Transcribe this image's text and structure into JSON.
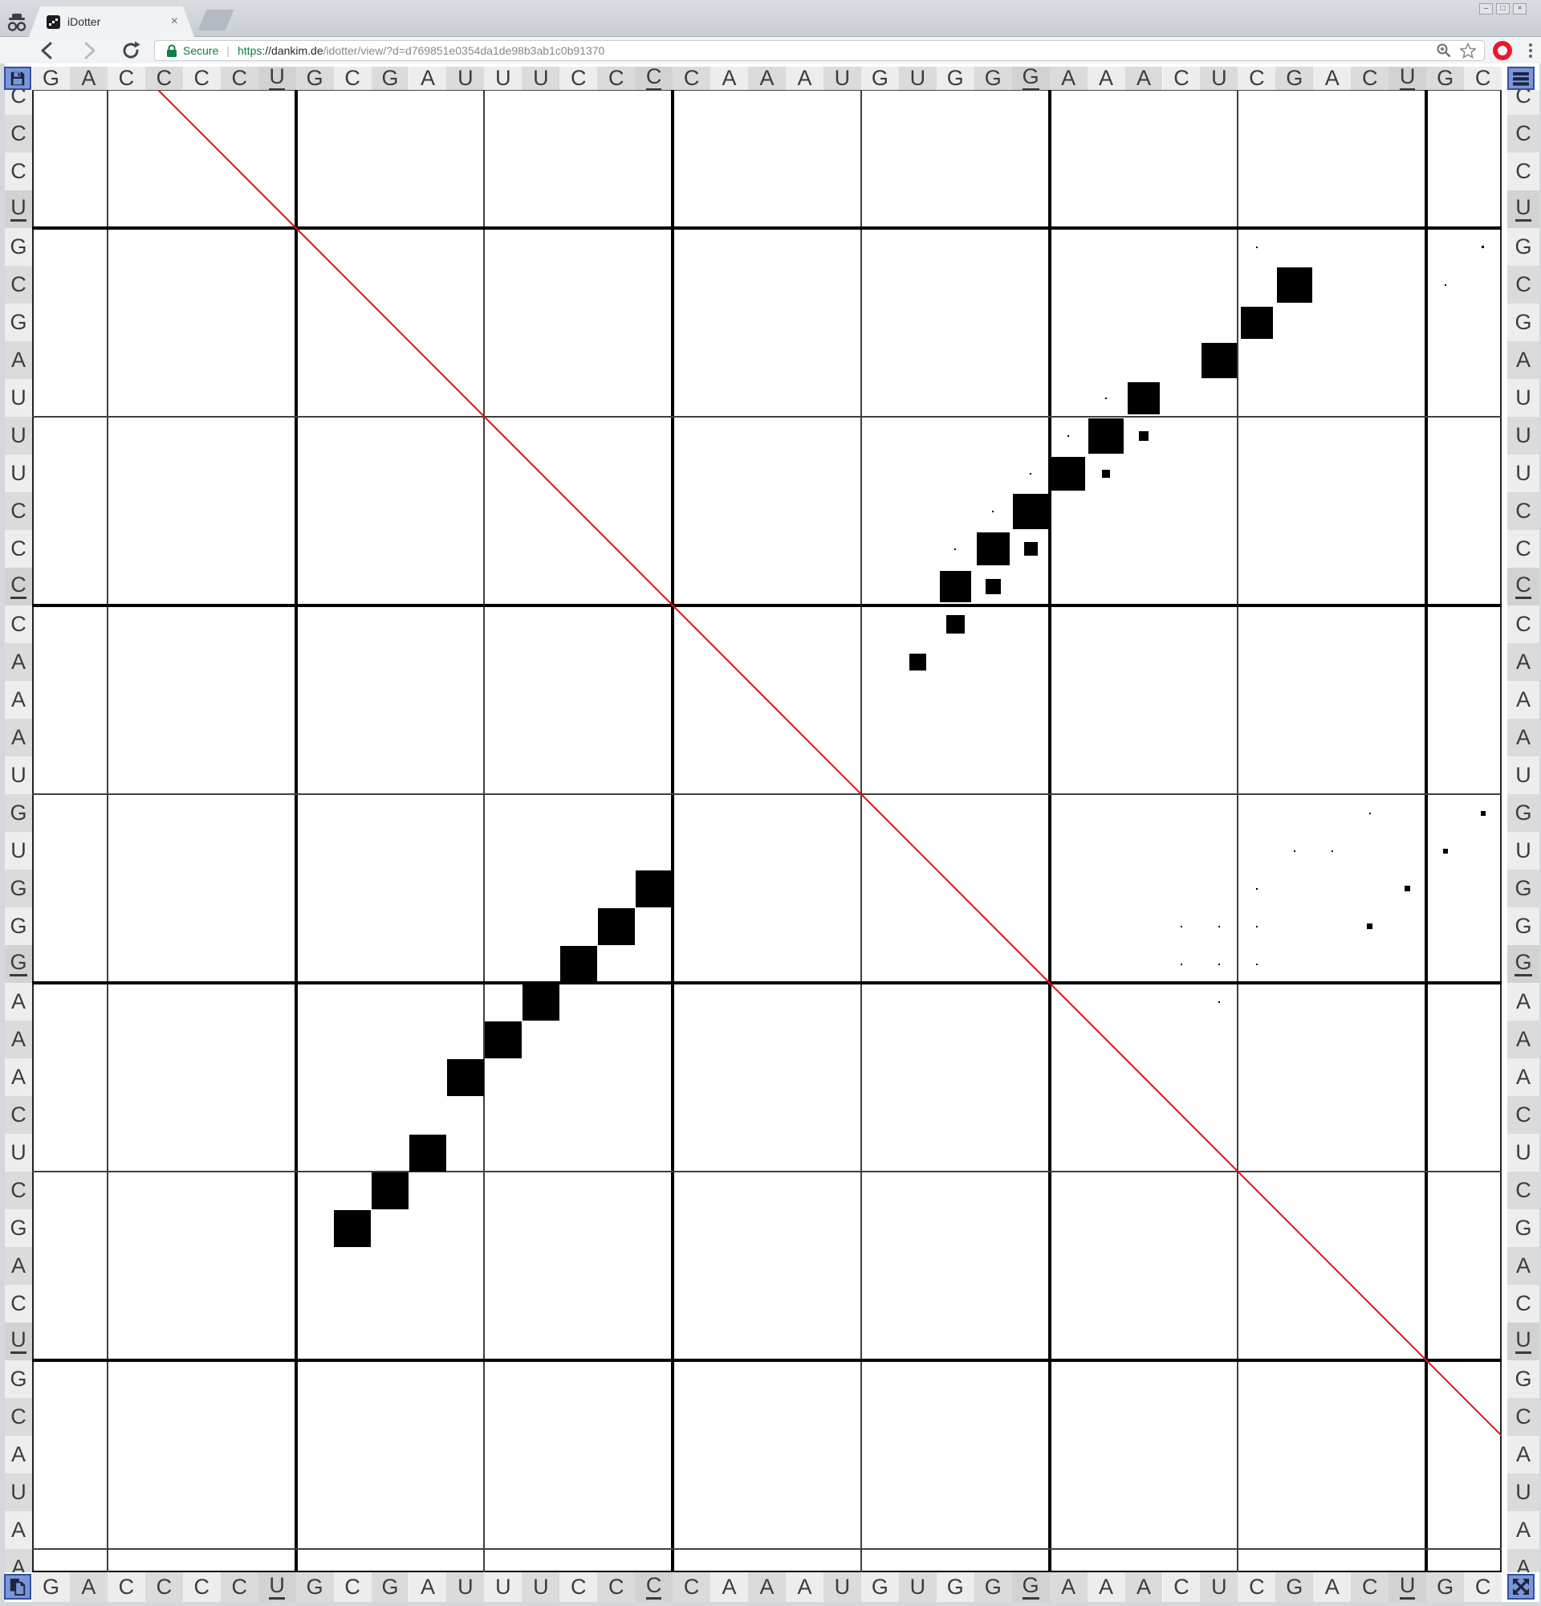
{
  "browser": {
    "tab": {
      "title": "iDotter",
      "close_glyph": "×"
    },
    "window_controls": {
      "minimize": "–",
      "maximize": "□",
      "close": "×"
    },
    "toolbar": {
      "secure_label": "Secure",
      "url_divider": "|",
      "url_scheme": "https:",
      "url_domain": "//dankim.de",
      "url_path": "/idotter/view/?d=d769851e0354da1de98b3ab1c0b91370"
    }
  },
  "matrix": {
    "top_sequence": "GACCCCUGCGAUUUCCCCAAAUGUGGGAAACUCGACUGC",
    "top_underline_positions": [
      7,
      17,
      27,
      37
    ],
    "bottom_sequence": "GACCCCUGCGAUUUCCCCAAAUGUGGGAAACUCGACUGC",
    "bottom_underline_positions": [
      7,
      17,
      27,
      37
    ],
    "left_sequence": "CCCUGCGAUUUCCCCAAAUGUGGGAAACUCGACUGCAUAA",
    "left_underline_positions": [
      4,
      14,
      24,
      34
    ],
    "right_sequence": "CCCUGCGAUUUCCCCAAAUGUGGGAAACUCGACUGCAUAA",
    "right_underline_positions": [
      4,
      14,
      24,
      34
    ],
    "grid": {
      "cols": 39,
      "rows": 40,
      "thick_vlines_after_cols": [
        7,
        17,
        27,
        37
      ],
      "thin_vlines_after_cols": [
        2,
        12,
        22,
        32
      ],
      "thick_hlines_after_rows": [
        4,
        14,
        24,
        34
      ],
      "thin_hlines_after_rows": [
        9,
        19,
        29,
        39
      ]
    },
    "dots_col_row_sizefrac": [
      [
        34,
        6,
        0.94
      ],
      [
        33,
        7,
        0.86
      ],
      [
        32,
        8,
        0.94
      ],
      [
        30,
        9,
        0.86
      ],
      [
        29,
        10,
        0.94
      ],
      [
        28,
        11,
        0.9
      ],
      [
        27,
        12,
        0.94
      ],
      [
        26,
        13,
        0.88
      ],
      [
        25,
        14,
        0.84
      ],
      [
        25,
        15,
        0.5
      ],
      [
        24,
        16,
        0.44
      ],
      [
        30,
        10,
        0.25
      ],
      [
        29,
        11,
        0.22
      ],
      [
        27,
        13,
        0.36
      ],
      [
        26,
        14,
        0.4
      ],
      [
        29,
        9,
        0.05
      ],
      [
        28,
        10,
        0.05
      ],
      [
        27,
        11,
        0.05
      ],
      [
        26,
        12,
        0.05
      ],
      [
        25,
        13,
        0.05
      ],
      [
        39,
        5,
        0.07
      ],
      [
        38,
        6,
        0.05
      ],
      [
        33,
        5,
        0.04
      ],
      [
        39,
        20,
        0.12
      ],
      [
        38,
        21,
        0.12
      ],
      [
        37,
        22,
        0.14
      ],
      [
        36,
        23,
        0.14
      ],
      [
        36,
        20,
        0.04
      ],
      [
        34,
        21,
        0.04
      ],
      [
        35,
        21,
        0.04
      ],
      [
        33,
        22,
        0.04
      ],
      [
        31,
        23,
        0.04
      ],
      [
        32,
        23,
        0.04
      ],
      [
        33,
        23,
        0.04
      ],
      [
        31,
        24,
        0.04
      ],
      [
        32,
        24,
        0.04
      ],
      [
        33,
        24,
        0.04
      ],
      [
        32,
        25,
        0.04
      ],
      [
        17,
        22,
        0.98
      ],
      [
        16,
        23,
        0.98
      ],
      [
        15,
        24,
        0.98
      ],
      [
        14,
        25,
        0.98
      ],
      [
        13,
        26,
        0.98
      ],
      [
        12,
        27,
        0.98
      ],
      [
        11,
        29,
        0.98
      ],
      [
        10,
        30,
        0.98
      ],
      [
        9,
        31,
        0.98
      ]
    ],
    "colors": {
      "cell_light": "#ededed",
      "cell_dark": "#dbdbdb",
      "cell_underlined": "#d2d2d2",
      "letter": "#3c3c3c",
      "line_thin": "#3f3f3f",
      "line_thick": "#000000",
      "diagonal": "#dc1414",
      "dot": "#000000",
      "button_bg": "#7b96d8",
      "button_border": "#33509e"
    }
  }
}
